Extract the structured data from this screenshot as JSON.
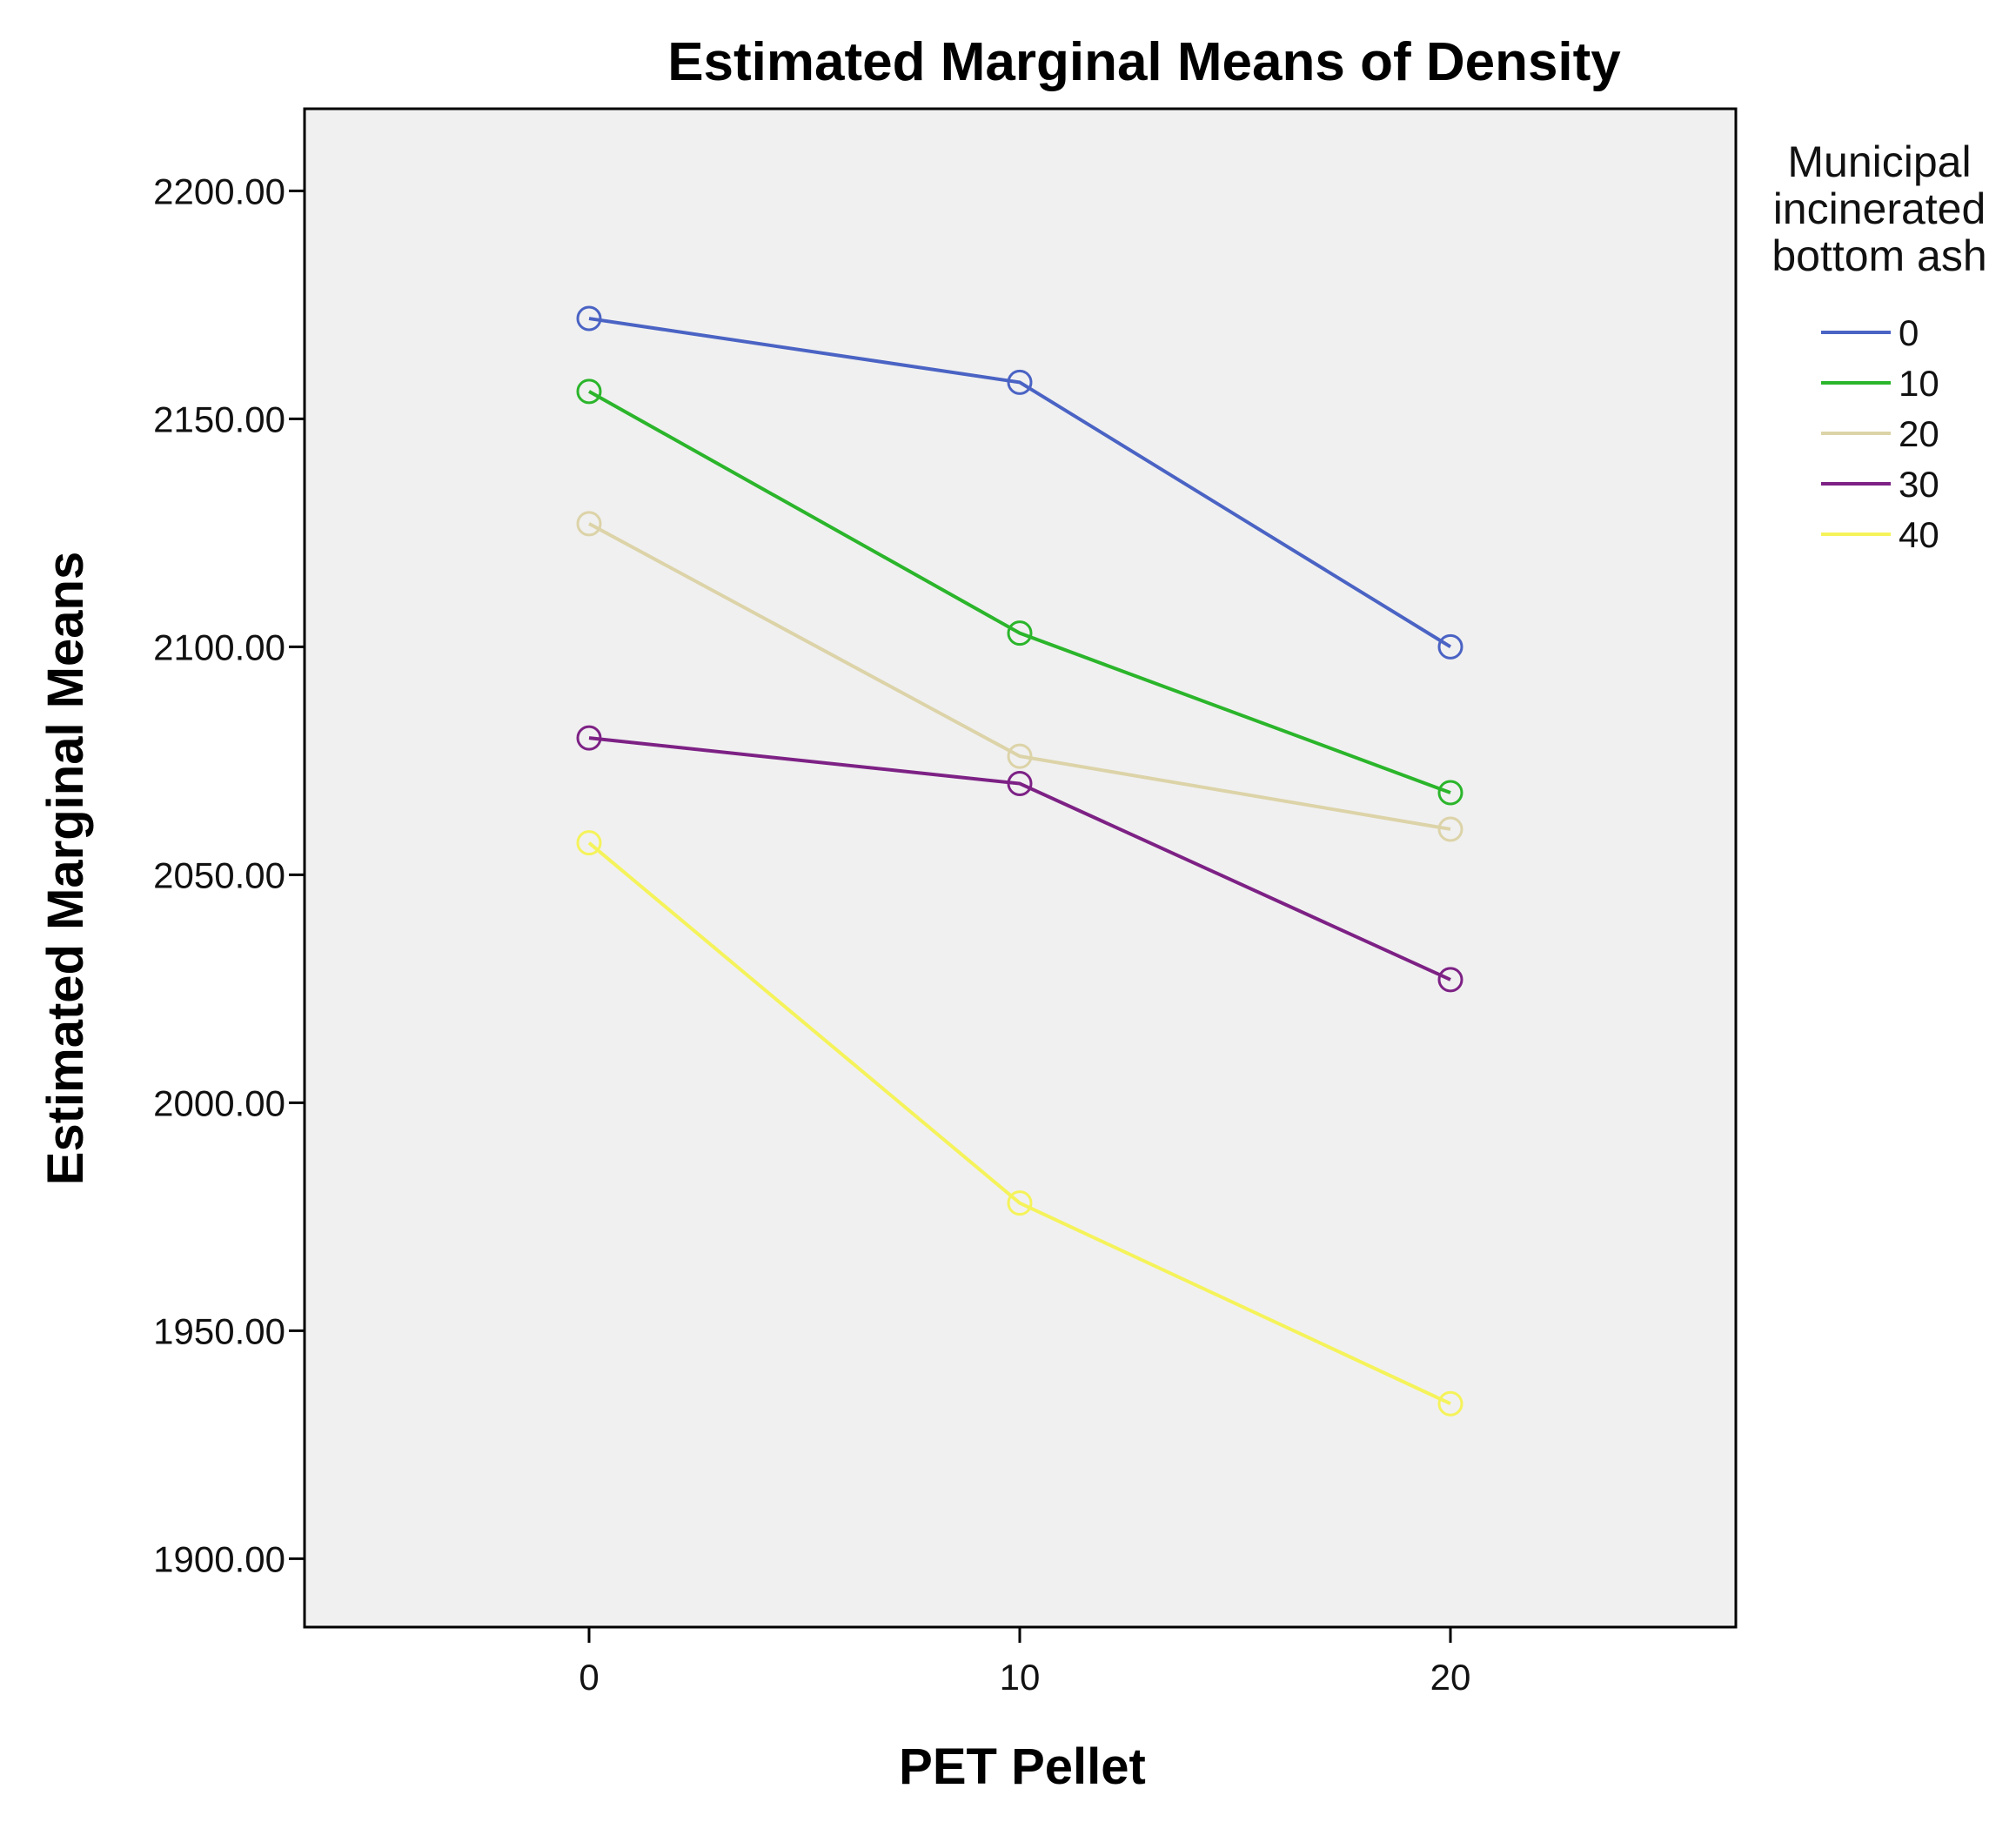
{
  "chart_data": {
    "type": "line",
    "title": "Estimated Marginal Means of Density",
    "xlabel": "PET Pellet",
    "ylabel": "Estimated Marginal Means",
    "x": [
      0,
      10,
      20
    ],
    "x_tick_labels": [
      "0",
      "10",
      "20"
    ],
    "ylim": [
      1885,
      2218
    ],
    "y_ticks": [
      1900,
      1950,
      2000,
      2050,
      2100,
      2150,
      2200
    ],
    "y_tick_labels": [
      "1900.00",
      "1950.00",
      "2000.00",
      "2050.00",
      "2100.00",
      "2150.00",
      "2200.00"
    ],
    "grid": false,
    "marker": "open-circle",
    "legend": {
      "title_lines": [
        "Municipal",
        "incinerated",
        "bottom ash"
      ],
      "placement": "right"
    },
    "series": [
      {
        "name": "0",
        "color": "#4a63c4",
        "values": [
          2172,
          2158,
          2100
        ]
      },
      {
        "name": "10",
        "color": "#2bb52b",
        "values": [
          2156,
          2103,
          2068
        ]
      },
      {
        "name": "20",
        "color": "#dcd3a8",
        "values": [
          2127,
          2076,
          2060
        ]
      },
      {
        "name": "30",
        "color": "#7d2185",
        "values": [
          2080,
          2070,
          2027
        ]
      },
      {
        "name": "40",
        "color": "#f5f35a",
        "values": [
          2057,
          1978,
          1934
        ]
      }
    ]
  }
}
